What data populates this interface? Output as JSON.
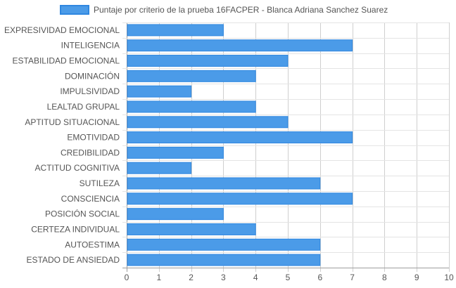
{
  "chart_data": {
    "type": "bar",
    "orientation": "horizontal",
    "legend": {
      "position": "top",
      "entries": [
        "Puntaje por criterio de la prueba 16FACPER - Blanca Adriana Sanchez Suarez"
      ]
    },
    "series": [
      {
        "name": "Puntaje por criterio de la prueba 16FACPER - Blanca Adriana Sanchez Suarez",
        "color": "#4b9be8",
        "border_color": "#2f87e0",
        "values": [
          3,
          7,
          5,
          4,
          2,
          4,
          5,
          7,
          3,
          2,
          6,
          7,
          3,
          4,
          6,
          6
        ]
      }
    ],
    "categories": [
      "EXPRESIVIDAD EMOCIONAL",
      "INTELIGENCIA",
      "ESTABILIDAD EMOCIONAL",
      "DOMINACIÓN",
      "IMPULSIVIDAD",
      "LEALTAD GRUPAL",
      "APTITUD SITUACIONAL",
      "EMOTIVIDAD",
      "CREDIBILIDAD",
      "ACTITUD COGNITIVA",
      "SUTILEZA",
      "CONSCIENCIA",
      "POSICIÓN SOCIAL",
      "CERTEZA INDIVIDUAL",
      "AUTOESTIMA",
      "ESTADO DE ANSIEDAD"
    ],
    "x_ticks": [
      "0",
      "1",
      "2",
      "3",
      "4",
      "5",
      "6",
      "7",
      "8",
      "9",
      "10"
    ],
    "xlim": [
      0,
      10
    ],
    "grid": true,
    "title": "",
    "xlabel": "",
    "ylabel": ""
  }
}
